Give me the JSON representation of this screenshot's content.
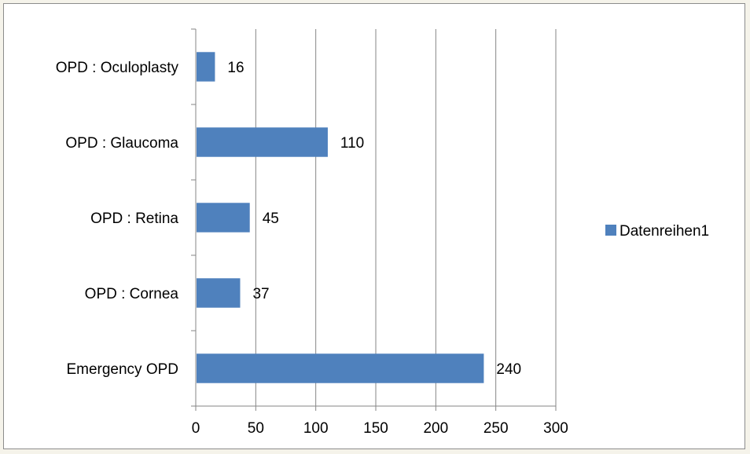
{
  "chart_data": {
    "type": "bar",
    "orientation": "horizontal",
    "categories": [
      "Emergency OPD",
      "OPD : Cornea",
      "OPD : Retina",
      "OPD : Glaucoma",
      "OPD : Oculoplasty"
    ],
    "series": [
      {
        "name": "Datenreihen1",
        "values": [
          240,
          37,
          45,
          110,
          16
        ],
        "color": "#4f81bd"
      }
    ],
    "xlim": [
      0,
      300
    ],
    "x_ticks": [
      0,
      50,
      100,
      150,
      200,
      250,
      300
    ],
    "grid": "vertical",
    "legend": "right",
    "data_labels": true
  }
}
